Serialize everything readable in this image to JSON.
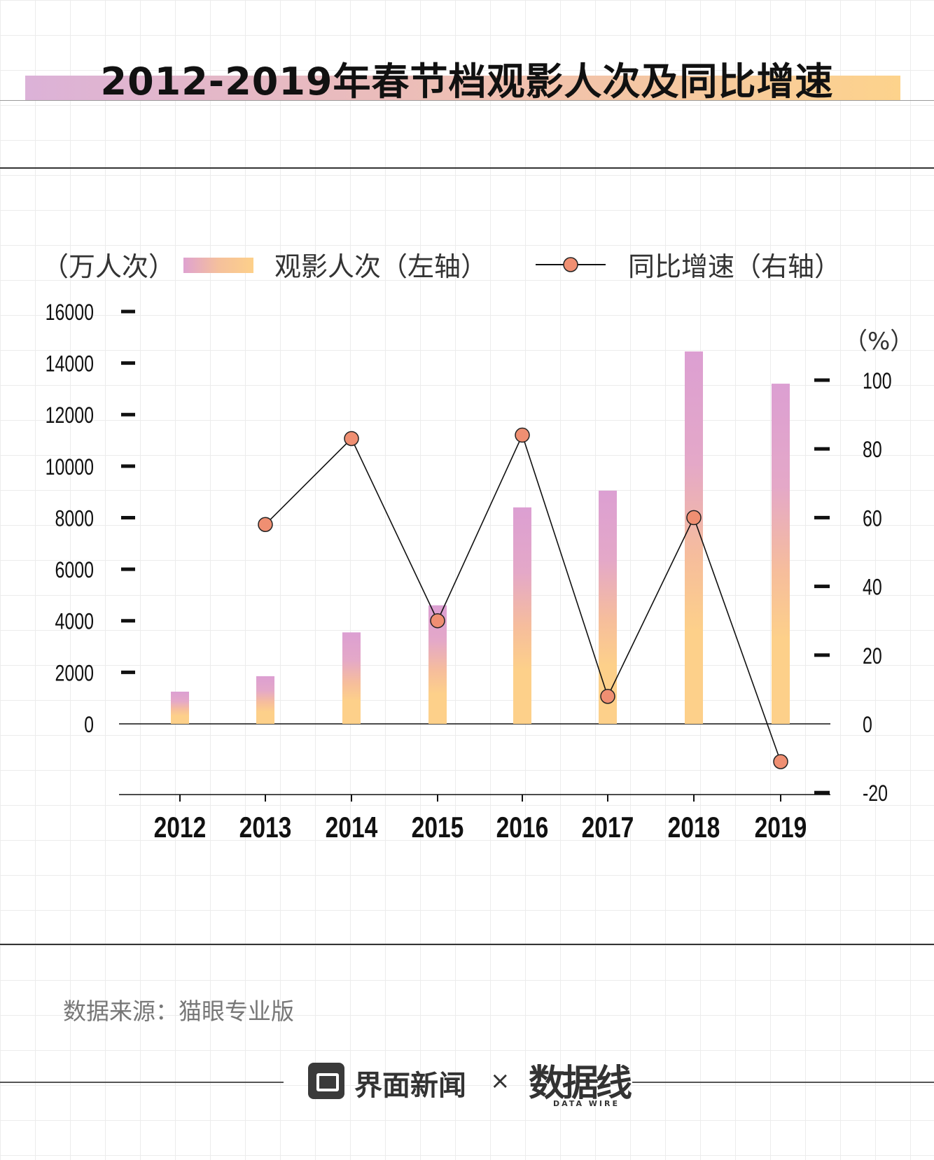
{
  "title": "2012-2019年春节档观影人次及同比增速",
  "legend": {
    "unit_left": "（万人次）",
    "bar_label": "观影人次（左轴）",
    "line_label": "同比增速（右轴）"
  },
  "right_unit": "（%）",
  "source": "数据来源：猫眼专业版",
  "footer": {
    "brand": "界面新闻",
    "times": "×",
    "partner": "数据线",
    "partner_sub": "DATA WIRE"
  },
  "colors": {
    "bar_top": "#dc9fd2",
    "bar_bottom": "#fdd08a",
    "marker_fill": "#ef8f72",
    "line": "#111111"
  },
  "chart_data": {
    "type": "bar",
    "categories": [
      "2012",
      "2013",
      "2014",
      "2015",
      "2016",
      "2017",
      "2018",
      "2019"
    ],
    "series": [
      {
        "name": "观影人次（左轴）",
        "type": "bar",
        "axis": "left",
        "values": [
          1250,
          1850,
          3550,
          4600,
          8400,
          9050,
          14450,
          13200
        ]
      },
      {
        "name": "同比增速（右轴）",
        "type": "line",
        "axis": "right",
        "values": [
          null,
          58,
          83,
          30,
          84,
          8,
          60,
          -11
        ]
      }
    ],
    "left_axis": {
      "range": [
        0,
        16000
      ],
      "ticks": [
        16000,
        14000,
        12000,
        10000,
        8000,
        6000,
        4000,
        2000,
        0
      ]
    },
    "right_axis": {
      "range": [
        -20,
        100
      ],
      "ticks": [
        100,
        80,
        60,
        40,
        20,
        0,
        -20
      ]
    }
  }
}
